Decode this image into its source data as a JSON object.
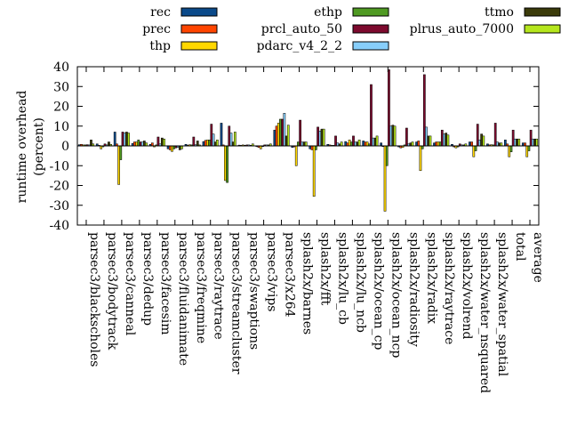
{
  "chart_data": {
    "type": "bar",
    "title": "",
    "xlabel": "",
    "ylabel": "runtime overhead (percent)",
    "ylabel_lines": [
      "runtime overhead",
      "(percent)"
    ],
    "ylim": [
      -40,
      40
    ],
    "yticks": [
      -40,
      -30,
      -20,
      -10,
      0,
      10,
      20,
      30,
      40
    ],
    "grid": false,
    "legend_position": "top",
    "categories": [
      "parsec3/blackscholes",
      "parsec3/bodytrack",
      "parsec3/canneal",
      "parsec3/dedup",
      "parsec3/facesim",
      "parsec3/fluidanimate",
      "parsec3/freqmine",
      "parsec3/raytrace",
      "parsec3/streamcluster",
      "parsec3/swaptions",
      "parsec3/vips",
      "parsec3/x264",
      "splash2x/barnes",
      "splash2x/fft",
      "splash2x/lu_cb",
      "splash2x/lu_ncb",
      "splash2x/ocean_cp",
      "splash2x/ocean_ncp",
      "splash2x/radiosity",
      "splash2x/radix",
      "splash2x/raytrace",
      "splash2x/volrend",
      "splash2x/water_nsquared",
      "splash2x/water_spatial",
      "total",
      "average"
    ],
    "series": [
      {
        "name": "rec",
        "color": "#0b4a8a",
        "values": [
          0.6,
          1.0,
          7.0,
          1.2,
          0.8,
          -1.5,
          0.8,
          2.2,
          11.5,
          0.4,
          -0.4,
          8.0,
          -0.8,
          -1.5,
          0.8,
          2.2,
          2.5,
          1.5,
          -0.5,
          2.0,
          1.5,
          0.8,
          2.0,
          1.0,
          3.0,
          1.5
        ]
      },
      {
        "name": "prec",
        "color": "#ff4500",
        "values": [
          0.8,
          0.3,
          1.0,
          2.0,
          1.5,
          -2.0,
          0.4,
          2.8,
          0.5,
          0.3,
          -0.8,
          10.0,
          -0.5,
          -2.0,
          0.5,
          1.5,
          2.0,
          -0.3,
          -1.0,
          2.5,
          2.0,
          -0.5,
          2.0,
          0.5,
          1.0,
          1.5
        ]
      },
      {
        "name": "thp",
        "color": "#ffd700",
        "values": [
          0.5,
          -1.5,
          -19.5,
          2.0,
          -0.5,
          -2.8,
          0.6,
          3.0,
          -17.5,
          0.5,
          -1.5,
          11.5,
          -10.0,
          -25.5,
          0.3,
          3.0,
          2.0,
          -33.0,
          -0.8,
          -12.5,
          2.0,
          -1.0,
          -5.5,
          0.6,
          -5.5,
          -5.5
        ]
      },
      {
        "name": "ethp",
        "color": "#4f9a22",
        "values": [
          0.5,
          -0.5,
          -7.0,
          3.0,
          0.5,
          -1.5,
          0.5,
          3.0,
          -18.5,
          0.3,
          -0.3,
          13.5,
          2.0,
          -2.0,
          0.3,
          2.0,
          1.0,
          -10.0,
          0.5,
          -1.5,
          2.0,
          -0.5,
          -2.5,
          0.5,
          -3.0,
          -2.5
        ]
      },
      {
        "name": "prcl_auto_50",
        "color": "#7d0a2e",
        "values": [
          0.6,
          1.0,
          7.0,
          2.0,
          4.5,
          -1.0,
          4.5,
          11.0,
          10.0,
          0.5,
          0.5,
          13.5,
          13.0,
          9.5,
          5.0,
          5.0,
          31.0,
          38.5,
          9.0,
          36.0,
          8.0,
          1.0,
          11.0,
          11.5,
          8.0,
          8.0
        ]
      },
      {
        "name": "pdarc_v4_2_2",
        "color": "#87cefa",
        "values": [
          0.5,
          0.5,
          6.5,
          2.0,
          1.0,
          -0.8,
          0.6,
          6.0,
          6.5,
          0.5,
          0.5,
          16.5,
          2.0,
          7.5,
          1.5,
          2.0,
          4.0,
          10.0,
          1.0,
          9.5,
          6.0,
          0.5,
          3.0,
          2.0,
          3.5,
          3.5
        ]
      },
      {
        "name": "ttmo",
        "color": "#3b3b0a",
        "values": [
          3.0,
          2.0,
          7.0,
          2.5,
          4.0,
          -2.0,
          2.5,
          2.0,
          2.0,
          0.3,
          0.5,
          5.0,
          2.0,
          8.5,
          1.0,
          2.0,
          4.0,
          10.5,
          1.5,
          5.0,
          6.5,
          0.5,
          6.0,
          1.5,
          3.5,
          3.5
        ]
      },
      {
        "name": "plrus_auto_7000",
        "color": "#b5e61d",
        "values": [
          1.0,
          0.8,
          6.5,
          1.5,
          3.5,
          -1.5,
          0.5,
          3.0,
          7.0,
          1.0,
          1.0,
          10.5,
          2.0,
          8.5,
          2.0,
          3.0,
          5.0,
          10.0,
          2.0,
          5.0,
          5.5,
          1.0,
          5.0,
          1.5,
          3.5,
          3.5
        ]
      }
    ]
  }
}
